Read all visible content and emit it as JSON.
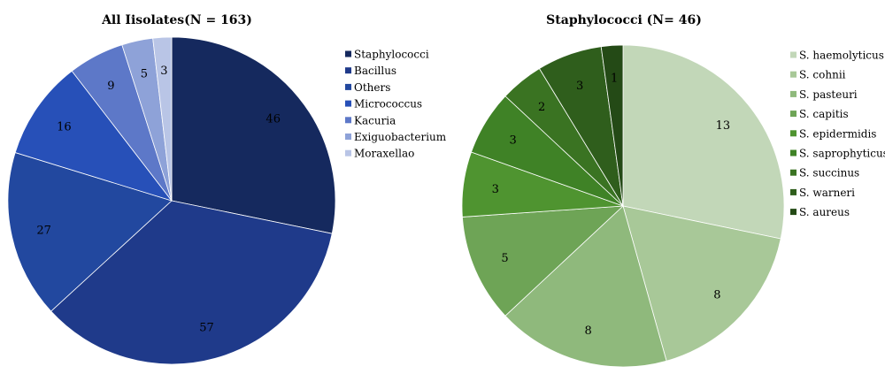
{
  "chart_data": [
    {
      "type": "pie",
      "title": "All Iisolates(N = 163)",
      "categories": [
        "Staphylococci",
        "Bacillus",
        "Others",
        "Micrococcus",
        "Kacuria",
        "Exiguobacterium",
        "Moraxellao"
      ],
      "values": [
        46,
        57,
        27,
        16,
        9,
        5,
        3
      ],
      "colors": [
        "#15295e",
        "#1f3a8a",
        "#22489f",
        "#2750b8",
        "#5d78c8",
        "#8ea2d8",
        "#b9c5e6"
      ],
      "start": "12 o'clock",
      "direction": "clockwise",
      "legend_position": "right"
    },
    {
      "type": "pie",
      "title": "Staphylococci (N= 46)",
      "categories": [
        "S. haemolyticus",
        "S. cohnii",
        "S. pasteuri",
        "S. capitis",
        "S. epidermidis",
        "S. saprophyticus",
        "S. succinus",
        "S. warneri",
        "S. aureus"
      ],
      "values": [
        13,
        8,
        8,
        5,
        3,
        3,
        2,
        3,
        1
      ],
      "colors": [
        "#c2d7b8",
        "#a8c898",
        "#8fb97c",
        "#6ea456",
        "#4f9430",
        "#3f8226",
        "#3a7322",
        "#2f5e1c",
        "#244a16"
      ],
      "start": "12 o'clock",
      "direction": "clockwise",
      "legend_position": "right"
    }
  ]
}
